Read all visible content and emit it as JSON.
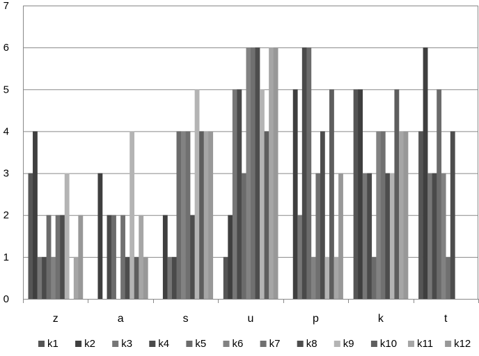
{
  "chart_data": {
    "type": "bar",
    "categories": [
      "z",
      "a",
      "s",
      "u",
      "p",
      "k",
      "t"
    ],
    "ylim": [
      0,
      7
    ],
    "yticks": [
      0,
      1,
      2,
      3,
      4,
      5,
      6,
      7
    ],
    "grid": true,
    "legend_position": "bottom",
    "series": [
      {
        "name": "k1",
        "color": "#555555",
        "values": [
          3,
          0,
          0,
          1,
          0,
          5,
          4
        ]
      },
      {
        "name": "k2",
        "color": "#3f3f3f",
        "values": [
          4,
          3,
          2,
          2,
          5,
          5,
          6
        ]
      },
      {
        "name": "k3",
        "color": "#767676",
        "values": [
          1,
          0,
          1,
          5,
          2,
          3,
          3
        ]
      },
      {
        "name": "k4",
        "color": "#4a4a4a",
        "values": [
          1,
          2,
          1,
          5,
          6,
          3,
          3
        ]
      },
      {
        "name": "k5",
        "color": "#6b6b6b",
        "values": [
          2,
          2,
          4,
          3,
          6,
          1,
          5
        ]
      },
      {
        "name": "k6",
        "color": "#828282",
        "values": [
          1,
          0,
          4,
          6,
          1,
          4,
          3
        ]
      },
      {
        "name": "k7",
        "color": "#707070",
        "values": [
          2,
          2,
          4,
          6,
          3,
          4,
          1
        ]
      },
      {
        "name": "k8",
        "color": "#4d4d4d",
        "values": [
          2,
          1,
          2,
          6,
          4,
          3,
          4
        ]
      },
      {
        "name": "k9",
        "color": "#b4b4b4",
        "values": [
          3,
          4,
          5,
          5,
          1,
          3,
          0
        ]
      },
      {
        "name": "k10",
        "color": "#5e5e5e",
        "values": [
          0,
          1,
          4,
          4,
          5,
          5,
          0
        ]
      },
      {
        "name": "k11",
        "color": "#a6a6a6",
        "values": [
          1,
          2,
          4,
          6,
          1,
          4,
          0
        ]
      },
      {
        "name": "k12",
        "color": "#989898",
        "values": [
          2,
          1,
          4,
          6,
          3,
          4,
          0
        ]
      }
    ]
  }
}
